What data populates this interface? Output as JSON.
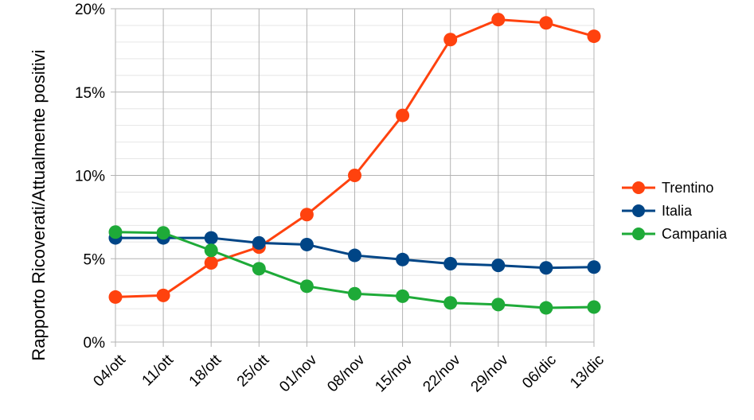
{
  "chart_data": {
    "type": "line",
    "title": "",
    "xlabel": "",
    "ylabel": "Rapporto Ricoverati/Attualmente positivi",
    "categories": [
      "04/ott",
      "11/ott",
      "18/ott",
      "25/ott",
      "01/nov",
      "08/nov",
      "15/nov",
      "22/nov",
      "29/nov",
      "06/dic",
      "13/dic"
    ],
    "ylim": [
      0,
      20
    ],
    "yticks": [
      "0%",
      "5%",
      "10%",
      "15%",
      "20%"
    ],
    "grid": "horizontal",
    "legend_position": "right",
    "series": [
      {
        "name": "Trentino",
        "color": "#ff420e",
        "values": [
          2.7,
          2.8,
          4.75,
          5.7,
          7.65,
          10.0,
          13.6,
          18.15,
          19.35,
          19.15,
          18.35
        ]
      },
      {
        "name": "Italia",
        "color": "#004586",
        "values": [
          6.25,
          6.25,
          6.25,
          5.95,
          5.85,
          5.2,
          4.95,
          4.7,
          4.6,
          4.45,
          4.5
        ]
      },
      {
        "name": "Campania",
        "color": "#1eaa38",
        "values": [
          6.6,
          6.55,
          5.5,
          4.4,
          3.35,
          2.9,
          2.75,
          2.35,
          2.25,
          2.05,
          2.1
        ]
      }
    ]
  }
}
